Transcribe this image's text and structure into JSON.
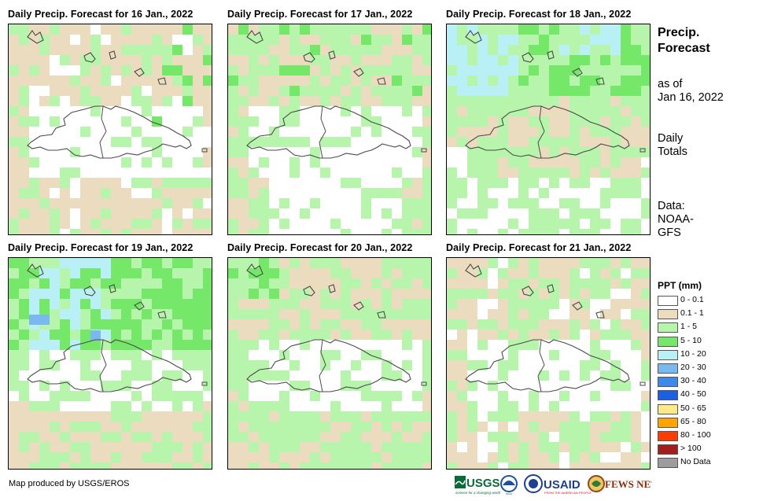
{
  "panels": [
    {
      "title": "Daily Precip. Forecast for 16 Jan., 2022"
    },
    {
      "title": "Daily Precip. Forecast for 17 Jan., 2022"
    },
    {
      "title": "Daily Precip. Forecast for 18 Jan., 2022"
    },
    {
      "title": "Daily Precip. Forecast for 19 Jan., 2022"
    },
    {
      "title": "Daily Precip. Forecast for 20 Jan., 2022"
    },
    {
      "title": "Daily Precip. Forecast for 21 Jan., 2022"
    }
  ],
  "side": {
    "title_line1": "Precip.",
    "title_line2": "Forecast",
    "asof_line1": "as of",
    "asof_line2": "Jan 16, 2022",
    "totals_line1": "Daily",
    "totals_line2": "Totals",
    "data_line1": "Data:",
    "data_line2": "NOAA-",
    "data_line3": "GFS"
  },
  "legend": {
    "title": "PPT (mm)",
    "items": [
      {
        "label": "0 - 0.1",
        "color": "#ffffff"
      },
      {
        "label": "0.1 - 1",
        "color": "#ecdcbf"
      },
      {
        "label": "1 - 5",
        "color": "#b7f5ac"
      },
      {
        "label": "5 - 10",
        "color": "#75e86a"
      },
      {
        "label": "10 - 20",
        "color": "#b8f0f5"
      },
      {
        "label": "20 - 30",
        "color": "#7ab8f0"
      },
      {
        "label": "30 - 40",
        "color": "#3d8ae8"
      },
      {
        "label": "40 - 50",
        "color": "#1c5fe0"
      },
      {
        "label": "50 - 65",
        "color": "#ffe88a"
      },
      {
        "label": "65 - 80",
        "color": "#ffa400"
      },
      {
        "label": "80 - 100",
        "color": "#ff3c00"
      },
      {
        "label": "> 100",
        "color": "#a51c1c"
      },
      {
        "label": "No Data",
        "color": "#9c9c9c"
      }
    ]
  },
  "footer": {
    "credit": "Map produced by USGS/EROS",
    "logo_usgs": "USGS",
    "logo_usgs_tagline": "science for a changing world",
    "logo_noaa": "NOAA",
    "logo_usaid": "USAID",
    "logo_usaid_tagline": "FROM THE AMERICAN PEOPLE",
    "logo_fews": "FEWS NET"
  }
}
